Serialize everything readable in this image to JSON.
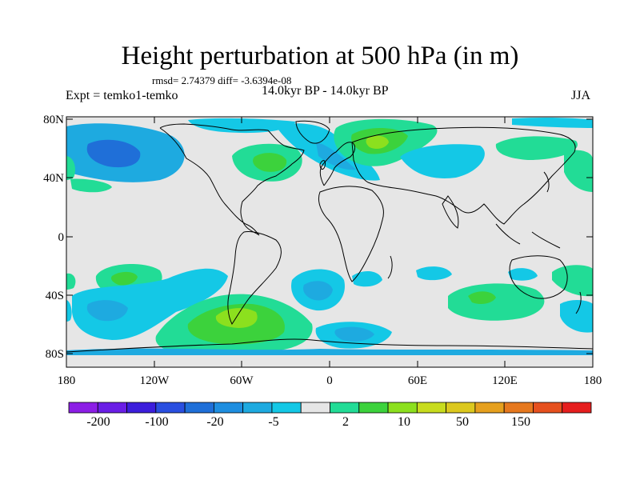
{
  "title": "Height perturbation at 500 hPa (in m)",
  "stats": "rmsd= 2.74379 diff= -3.6394e-08",
  "experiment": "Expt = temko1-temko",
  "period": "14.0kyr BP - 14.0kyr BP",
  "season": "JJA",
  "map": {
    "background_color": "#e6e6e6",
    "lat_ticks": [
      "80N",
      "40N",
      "0",
      "40S",
      "80S"
    ],
    "lon_ticks": [
      "180",
      "120W",
      "60W",
      "0",
      "60E",
      "120E",
      "180"
    ]
  },
  "colorbar": {
    "colors": [
      "#8c1ee6",
      "#6a1ee6",
      "#3c1edc",
      "#2a4fe0",
      "#1f6fd8",
      "#1e8ee0",
      "#1eaae0",
      "#14c8e6",
      "#e6e6e6",
      "#22dc96",
      "#3cd23c",
      "#8ce01e",
      "#c8dc1e",
      "#dcc81e",
      "#e6a01e",
      "#e6781e",
      "#e6501e",
      "#e61e1e"
    ],
    "labels": [
      "-200",
      "-100",
      "-20",
      "-5",
      "2",
      "10",
      "50",
      "150"
    ]
  }
}
